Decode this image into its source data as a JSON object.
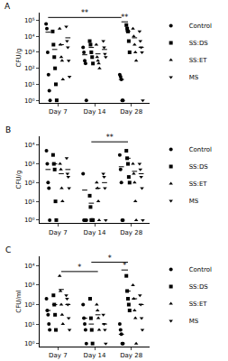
{
  "chart_data": [
    {
      "type": "scatter",
      "title": "A",
      "ylabel": "CFU/g",
      "log": "y",
      "grid": false,
      "categories": [
        "Day 7",
        "Day 14",
        "Day 28"
      ],
      "ylim": [
        0.7,
        300000
      ],
      "yticks": [
        {
          "value": 1,
          "label": "10⁰"
        },
        {
          "value": 10,
          "label": "10¹"
        },
        {
          "value": 100,
          "label": "10²"
        },
        {
          "value": 1000,
          "label": "10³"
        },
        {
          "value": 10000,
          "label": "10⁴"
        },
        {
          "value": 100000,
          "label": "10⁵"
        }
      ],
      "series": [
        {
          "name": "Control",
          "color": "#000000",
          "marker": "circle",
          "values": [
            [
              60000,
              30000,
              1000,
              40,
              4,
              1
            ],
            [
              2000,
              1000,
              300,
              200,
              1
            ],
            [
              40,
              30,
              20,
              1,
              1
            ]
          ],
          "means": [
            18000,
            700,
            20
          ]
        },
        {
          "name": "SS:DS",
          "color": "#000000",
          "marker": "square",
          "values": [
            [
              20000,
              3000,
              500,
              100,
              10,
              1
            ],
            [
              5000,
              3000,
              1000,
              500,
              200
            ],
            [
              50000,
              30000,
              20000,
              5000,
              1000
            ]
          ],
          "means": [
            1500,
            2000,
            20000
          ]
        },
        {
          "name": "SS:ET",
          "color": "#000000",
          "marker": "triangle-up",
          "values": [
            [
              30000,
              3000,
              500,
              300,
              20
            ],
            [
              3000,
              500,
              300,
              200,
              100
            ],
            [
              30000,
              10000,
              3000,
              1000,
              300
            ]
          ],
          "means": [
            3000,
            800,
            8000
          ]
        },
        {
          "name": "MS",
          "color": "#000000",
          "marker": "triangle-down",
          "values": [
            [
              40000,
              5000,
              2000,
              300,
              30
            ],
            [
              5000,
              2000,
              800,
              500
            ],
            [
              20000,
              5000,
              2000,
              1000,
              1
            ]
          ],
          "means": [
            8000,
            1500,
            2000
          ]
        }
      ],
      "comparisons": [
        {
          "from": {
            "category": "Day 7",
            "series": "Control"
          },
          "to": {
            "category": "Day 28",
            "series": "Control"
          },
          "y": 150000,
          "label": "**"
        },
        {
          "from": {
            "category": "Day 28",
            "series": "Control"
          },
          "to": {
            "category": "Day 28",
            "series": "SS:DS"
          },
          "y": 80000,
          "label": "**"
        }
      ]
    },
    {
      "type": "scatter",
      "title": "B",
      "ylabel": "CFU/g",
      "log": "y",
      "grid": false,
      "categories": [
        "Day 7",
        "Day 14",
        "Day 28"
      ],
      "ylim": [
        0.7,
        30000
      ],
      "yticks": [
        {
          "value": 1,
          "label": "10⁰"
        },
        {
          "value": 10,
          "label": "10¹"
        },
        {
          "value": 100,
          "label": "10²"
        },
        {
          "value": 1000,
          "label": "10³"
        },
        {
          "value": 10000,
          "label": "10⁴"
        }
      ],
      "series": [
        {
          "name": "Control",
          "color": "#000000",
          "marker": "circle",
          "values": [
            [
              5000,
              1000,
              100,
              50,
              1
            ],
            [
              300,
              1,
              1,
              1,
              1
            ],
            [
              3000,
              500,
              100,
              1,
              1
            ]
          ],
          "means": [
            500,
            40,
            700
          ]
        },
        {
          "name": "SS:DS",
          "color": "#000000",
          "marker": "square",
          "values": [
            [
              3000,
              1000,
              500,
              10,
              1
            ],
            [
              20,
              5,
              1,
              1,
              1
            ],
            [
              5000,
              2000,
              1000,
              200,
              100
            ]
          ],
          "means": [
            1000,
            8,
            2000
          ]
        },
        {
          "name": "SS:ET",
          "color": "#000000",
          "marker": "triangle-up",
          "values": [
            [
              1000,
              500,
              50,
              10
            ],
            [
              100,
              50,
              10,
              1
            ],
            [
              1000,
              300,
              100,
              10,
              1
            ]
          ],
          "means": [
            300,
            50,
            400
          ]
        },
        {
          "name": "MS",
          "color": "#000000",
          "marker": "triangle-down",
          "values": [
            [
              2000,
              300,
              200,
              50
            ],
            [
              300,
              200,
              50,
              1
            ],
            [
              1000,
              500,
              200,
              50,
              1
            ]
          ],
          "means": [
            500,
            100,
            300
          ]
        }
      ],
      "comparisons": [
        {
          "from": {
            "category": "Day 14",
            "series": "SS:DS"
          },
          "to": {
            "category": "Day 28",
            "series": "SS:DS"
          },
          "y": 15000,
          "label": "**"
        }
      ]
    },
    {
      "type": "scatter",
      "title": "C",
      "ylabel": "CFU/ml",
      "log": "y",
      "grid": false,
      "categories": [
        "Day 7",
        "Day 14",
        "Day 28"
      ],
      "ylim": [
        0.7,
        30000
      ],
      "yticks": [
        {
          "value": 1,
          "label": "10⁰"
        },
        {
          "value": 10,
          "label": "10¹"
        },
        {
          "value": 100,
          "label": "10²"
        },
        {
          "value": 1000,
          "label": "10³"
        },
        {
          "value": 10000,
          "label": "10⁴"
        }
      ],
      "series": [
        {
          "name": "Control",
          "color": "#000000",
          "marker": "circle",
          "values": [
            [
              200,
              50,
              30,
              10,
              5
            ],
            [
              100,
              20,
              10,
              5,
              1
            ],
            [
              10,
              5,
              3,
              1,
              1
            ]
          ],
          "means": [
            50,
            20,
            3
          ]
        },
        {
          "name": "SS:DS",
          "color": "#000000",
          "marker": "square",
          "values": [
            [
              300,
              100,
              30,
              5
            ],
            [
              200,
              20,
              5,
              1
            ],
            [
              3000,
              500,
              200,
              100,
              50
            ]
          ],
          "means": [
            100,
            10,
            500
          ]
        },
        {
          "name": "SS:ET",
          "color": "#000000",
          "marker": "triangle-up",
          "values": [
            [
              3000,
              500,
              100,
              30,
              10
            ],
            [
              100,
              50,
              20,
              5
            ],
            [
              1000,
              200,
              50,
              20,
              1
            ]
          ],
          "means": [
            600,
            30,
            200
          ]
        },
        {
          "name": "MS",
          "color": "#000000",
          "marker": "triangle-down",
          "values": [
            [
              300,
              200,
              100,
              20,
              5
            ],
            [
              30,
              10,
              5,
              1
            ],
            [
              300,
              100,
              20,
              5
            ]
          ],
          "means": [
            100,
            10,
            100
          ]
        }
      ],
      "comparisons": [
        {
          "from": {
            "category": "Day 7",
            "series": "SS:ET"
          },
          "to": {
            "category": "Day 14",
            "series": "SS:ET"
          },
          "y": 5000,
          "label": "*"
        },
        {
          "from": {
            "category": "Day 14",
            "series": "SS:DS"
          },
          "to": {
            "category": "Day 28",
            "series": "SS:DS"
          },
          "y": 15000,
          "label": "*"
        },
        {
          "from": {
            "category": "Day 28",
            "series": "Control"
          },
          "to": {
            "category": "Day 28",
            "series": "SS:DS"
          },
          "y": 6000,
          "label": "*"
        }
      ]
    }
  ]
}
